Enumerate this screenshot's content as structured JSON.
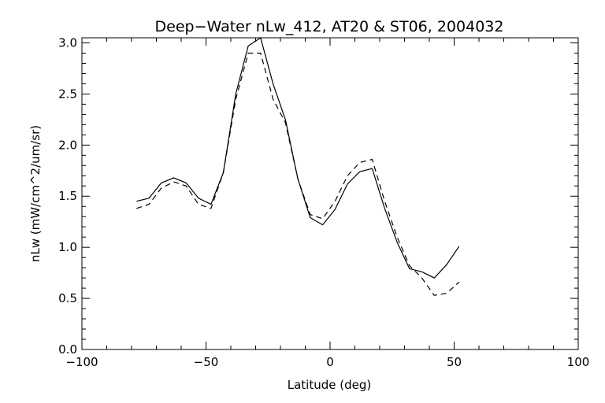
{
  "chart_data": {
    "type": "line",
    "title": "Deep−Water nLw_412, AT20 & ST06, 2004032",
    "xlabel": "Latitude (deg)",
    "ylabel": "nLw (mW/cm^2/um/sr)",
    "xlim": [
      -100,
      100
    ],
    "ylim": [
      0.0,
      3.05
    ],
    "xticks": [
      "−100",
      "−50",
      "0",
      "50",
      "100"
    ],
    "yticks": [
      "0.0",
      "0.5",
      "1.0",
      "1.5",
      "2.0",
      "2.5",
      "3.0"
    ],
    "grid": false,
    "series": [
      {
        "style": "solid",
        "x": [
          -78,
          -73,
          -68,
          -63,
          -58,
          -53,
          -48,
          -43,
          -38,
          -33,
          -28,
          -23,
          -18,
          -13,
          -8,
          -3,
          2,
          7,
          12,
          17,
          22,
          27,
          32,
          37,
          42,
          47,
          52
        ],
        "y": [
          1.45,
          1.48,
          1.63,
          1.68,
          1.63,
          1.48,
          1.42,
          1.73,
          2.5,
          2.97,
          3.05,
          2.6,
          2.25,
          1.67,
          1.29,
          1.22,
          1.37,
          1.62,
          1.74,
          1.77,
          1.38,
          1.05,
          0.79,
          0.76,
          0.7,
          0.83,
          1.01
        ]
      },
      {
        "style": "dashed",
        "x": [
          -78,
          -73,
          -68,
          -63,
          -58,
          -53,
          -48,
          -43,
          -38,
          -33,
          -28,
          -23,
          -18,
          -13,
          -8,
          -3,
          2,
          7,
          12,
          17,
          22,
          27,
          32,
          37,
          42,
          47,
          52
        ],
        "y": [
          1.38,
          1.42,
          1.58,
          1.64,
          1.6,
          1.42,
          1.38,
          1.73,
          2.45,
          2.9,
          2.9,
          2.45,
          2.22,
          1.67,
          1.32,
          1.28,
          1.45,
          1.7,
          1.83,
          1.86,
          1.45,
          1.1,
          0.82,
          0.7,
          0.53,
          0.55,
          0.66
        ]
      }
    ]
  }
}
